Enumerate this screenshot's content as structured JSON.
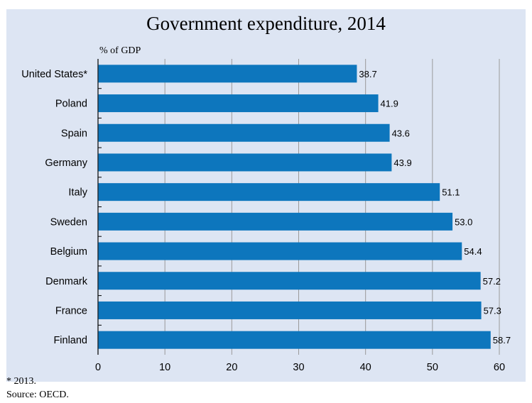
{
  "chart_data": {
    "type": "bar",
    "orientation": "horizontal",
    "title": "Government expenditure, 2014",
    "unit_label": "% of GDP",
    "xlabel": "",
    "ylabel": "",
    "categories": [
      "United States*",
      "Poland",
      "Spain",
      "Germany",
      "Italy",
      "Sweden",
      "Belgium",
      "Denmark",
      "France",
      "Finland"
    ],
    "values": [
      38.7,
      41.9,
      43.6,
      43.9,
      51.1,
      53.0,
      54.4,
      57.2,
      57.3,
      58.7
    ],
    "value_labels": [
      "38.7",
      "41.9",
      "43.6",
      "43.9",
      "51.1",
      "53.0",
      "54.4",
      "57.2",
      "57.3",
      "58.7"
    ],
    "xlim": [
      0,
      60
    ],
    "xticks": [
      0,
      10,
      20,
      30,
      40,
      50,
      60
    ],
    "grid": "vertical",
    "legend": "none",
    "colors": {
      "bar": "#0d76bd",
      "panel": "#dde5f3",
      "gridline": "#9a9a9a"
    }
  },
  "notes": {
    "footnote": "* 2013.",
    "source": "Source: OECD."
  }
}
